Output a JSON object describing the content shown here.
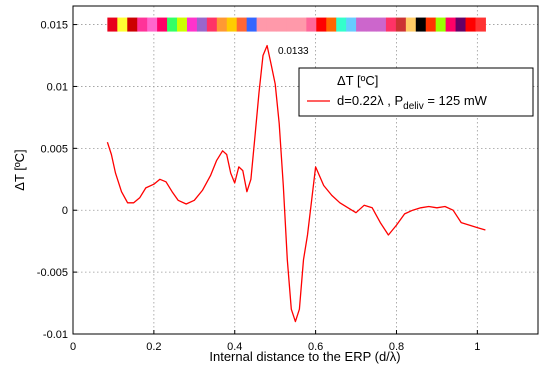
{
  "chart_data": {
    "type": "line",
    "title": "",
    "xlabel": "Internal distance to the ERP (d/λ)",
    "ylabel": "ΔT [ºC]",
    "xlim": [
      0,
      1.15
    ],
    "ylim": [
      -0.01,
      0.0165
    ],
    "grid": true,
    "legend_position": "top-right",
    "x_ticks": [
      "0",
      "0.2",
      "0.4",
      "0.6",
      "0.8",
      "1"
    ],
    "y_ticks": [
      "-0.01",
      "-0.005",
      "0",
      "0.005",
      "0.01",
      "0.015"
    ],
    "legend": {
      "title": "ΔT [ºC]",
      "entry_main": "d=0.22λ , P",
      "entry_sub": "deliv",
      "entry_tail": " = 125 mW"
    },
    "peak_annotation": {
      "text": "0.0133",
      "x": 0.49,
      "y": 0.0133
    },
    "series": [
      {
        "name": "d=0.22λ , Pdeliv = 125 mW",
        "color": "#ff0000",
        "x": [
          0.085,
          0.095,
          0.105,
          0.12,
          0.135,
          0.15,
          0.165,
          0.18,
          0.2,
          0.215,
          0.23,
          0.245,
          0.26,
          0.28,
          0.3,
          0.32,
          0.34,
          0.355,
          0.37,
          0.38,
          0.39,
          0.4,
          0.41,
          0.42,
          0.43,
          0.44,
          0.45,
          0.46,
          0.47,
          0.48,
          0.49,
          0.5,
          0.51,
          0.52,
          0.53,
          0.54,
          0.55,
          0.56,
          0.57,
          0.58,
          0.6,
          0.62,
          0.64,
          0.66,
          0.68,
          0.7,
          0.72,
          0.74,
          0.76,
          0.78,
          0.8,
          0.82,
          0.84,
          0.86,
          0.88,
          0.9,
          0.92,
          0.94,
          0.96,
          0.98,
          1.0,
          1.02
        ],
        "y": [
          0.0055,
          0.0045,
          0.003,
          0.0015,
          0.0006,
          0.0006,
          0.001,
          0.0018,
          0.0021,
          0.0025,
          0.0023,
          0.0015,
          0.0008,
          0.0005,
          0.0008,
          0.0016,
          0.0028,
          0.004,
          0.0048,
          0.0045,
          0.003,
          0.0022,
          0.0035,
          0.0032,
          0.0015,
          0.0025,
          0.006,
          0.0095,
          0.0125,
          0.0133,
          0.0118,
          0.0102,
          0.007,
          0.002,
          -0.004,
          -0.008,
          -0.009,
          -0.008,
          -0.004,
          -0.002,
          0.0035,
          0.002,
          0.0012,
          0.0006,
          0.0002,
          -0.0002,
          0.0004,
          0.0002,
          -0.001,
          -0.002,
          -0.0012,
          -0.0003,
          0.0,
          0.0002,
          0.0003,
          0.0002,
          0.0003,
          0.0,
          -0.001,
          -0.0012,
          -0.0014,
          -0.0016
        ]
      }
    ],
    "band": {
      "y": 0.015,
      "x_start": 0.085,
      "x_end": 1.02,
      "colors": [
        "#e8001c",
        "#ffff33",
        "#cc0000",
        "#ff3399",
        "#ff66cc",
        "#ff0066",
        "#33ff66",
        "#ccff00",
        "#ff33cc",
        "#9966cc",
        "#ff3366",
        "#ff9933",
        "#ffcc00",
        "#ff6633",
        "#3366ff",
        "#ff99aa",
        "#ff99aa",
        "#ff99aa",
        "#ff99aa",
        "#ff99aa",
        "#ff6699",
        "#ff0000",
        "#ff6600",
        "#33ffcc",
        "#66ccff",
        "#cc66cc",
        "#cc66cc",
        "#cc66cc",
        "#ff3366",
        "#cc3333",
        "#ffcc66",
        "#000000",
        "#ff3300",
        "#99ff00",
        "#ff0066",
        "#660066",
        "#ff0000",
        "#ff3333"
      ]
    }
  }
}
